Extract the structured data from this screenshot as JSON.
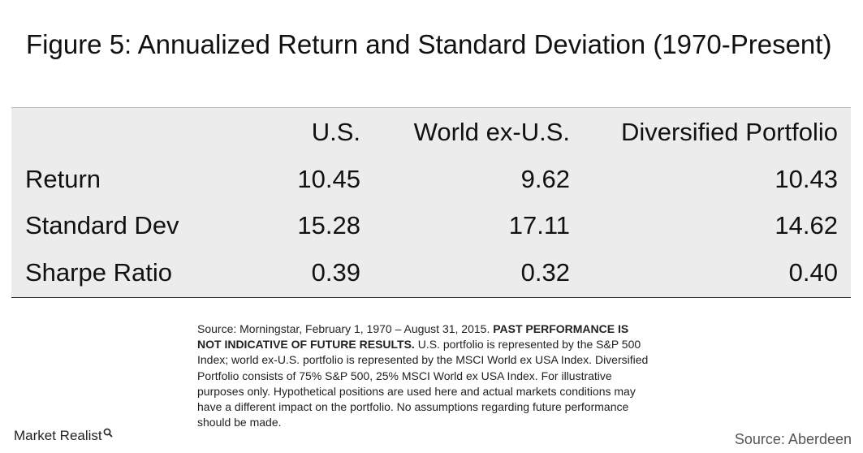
{
  "title": "Figure 5: Annualized Return and Standard Deviation (1970-Present)",
  "table": {
    "columns": [
      "",
      "U.S.",
      "World ex-U.S.",
      "Diversified Portfolio"
    ],
    "rows": [
      {
        "label": "Return",
        "values": [
          "10.45",
          "9.62",
          "10.43"
        ]
      },
      {
        "label": "Standard Dev",
        "values": [
          "15.28",
          "17.11",
          "14.62"
        ]
      },
      {
        "label": "Sharpe Ratio",
        "values": [
          "0.39",
          "0.32",
          "0.40"
        ]
      }
    ]
  },
  "note": {
    "part1": "Source: Morningstar, February 1, 1970 – August 31, 2015. ",
    "bold": "PAST PERFORMANCE IS NOT INDICATIVE OF FUTURE RESULTS.",
    "part2": " U.S. portfolio is represented by the S&P 500 Index; world ex-U.S. portfolio is represented by the MSCI World ex USA Index. Diversified Portfolio consists of 75% S&P 500, 25% MSCI World ex USA Index. For illustrative purposes only.  Hypothetical positions are used here and actual markets conditions may have a different impact on the portfolio. No assumptions regarding future performance should be made."
  },
  "logo": {
    "text": "Market Realist",
    "icon": "magnifier-icon"
  },
  "source": "Source: Aberdeen"
}
